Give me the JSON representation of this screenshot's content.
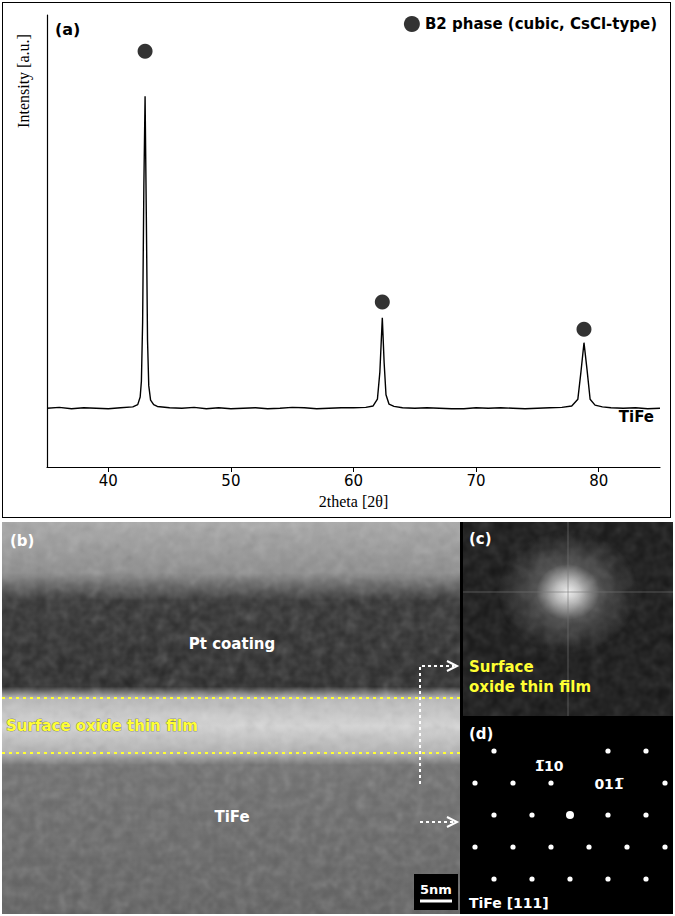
{
  "chart_data": {
    "type": "line",
    "panel_label": "(a)",
    "xlabel": "2theta [2θ]",
    "ylabel": "Intensity [a.u.]",
    "xlim": [
      35,
      85
    ],
    "xticks": [
      40,
      50,
      60,
      70,
      80
    ],
    "ylim": [
      0,
      100
    ],
    "yticks": [],
    "tick_labels": "x",
    "grid": false,
    "legend": "top right",
    "series": [
      {
        "name": "TiFe",
        "type": "line",
        "color": "#000000",
        "line_style": "solid",
        "x": [
          35,
          36,
          37,
          38,
          39,
          40,
          41,
          42,
          42.4,
          42.6,
          42.7,
          42.8,
          42.9,
          43.0,
          43.1,
          43.2,
          43.3,
          43.45,
          43.7,
          44,
          45,
          46,
          47,
          48,
          49,
          50,
          51,
          52,
          53,
          54,
          55,
          56,
          57,
          58,
          59,
          60,
          61,
          61.6,
          61.95,
          62.15,
          62.35,
          62.5,
          62.65,
          62.9,
          63.3,
          64,
          65,
          66,
          67,
          68,
          69,
          70,
          71,
          72,
          73,
          74,
          75,
          76,
          77,
          77.8,
          78.3,
          78.55,
          78.8,
          79.05,
          79.3,
          79.7,
          80.3,
          81,
          82,
          83,
          84,
          85
        ],
        "values": [
          13,
          13.2,
          12.9,
          13.1,
          13,
          12.9,
          13.1,
          13.3,
          13.8,
          15.5,
          19,
          32,
          62,
          82,
          56,
          28,
          18,
          14.8,
          13.8,
          13.4,
          13.1,
          13,
          13.2,
          12.9,
          13.1,
          12.9,
          13,
          13.1,
          12.9,
          13,
          13.2,
          13.1,
          12.9,
          13,
          13.1,
          13.1,
          13.2,
          13.5,
          15,
          21,
          33,
          23,
          16,
          13.9,
          13.4,
          13.1,
          13,
          13.1,
          13,
          12.9,
          12.9,
          13.1,
          13,
          13.1,
          13,
          12.9,
          13,
          13.1,
          13.2,
          13.5,
          15,
          21,
          27.5,
          21.5,
          15,
          13.7,
          13.3,
          13.1,
          13,
          13.1,
          12.9,
          13
        ]
      },
      {
        "name": "B2 phase (cubic, CsCl-type)",
        "type": "scatter",
        "marker": "circle",
        "color": "#000000",
        "x": [
          43.0,
          62.35,
          78.8
        ],
        "values": [
          92,
          36.5,
          30.5
        ]
      }
    ]
  },
  "panels": [
    {
      "label": "(b)",
      "texts": [
        "Pt coating",
        "Surface oxide thin film",
        "TiFe"
      ],
      "scale_bar": "5nm"
    },
    {
      "label": "(c)",
      "texts": [
        "Surface oxide thin film"
      ]
    },
    {
      "label": "(d)",
      "spot_labels": [
        "1̅10",
        "011̅"
      ],
      "zone": "TiFe [111]"
    }
  ]
}
